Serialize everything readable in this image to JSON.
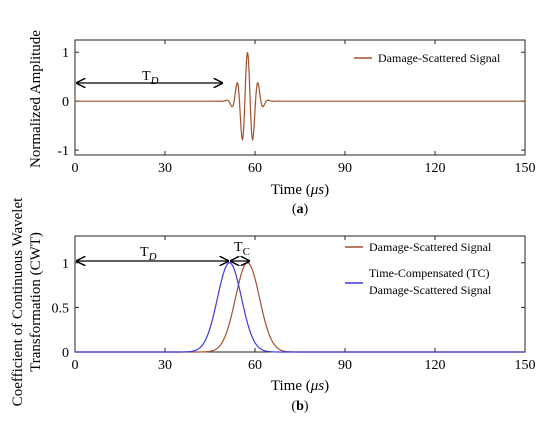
{
  "chart_data": [
    {
      "type": "line",
      "panel_label": "(a)",
      "xlabel": "Time (μs)",
      "ylabel": "Normalized Amplitude",
      "xlim": [
        0,
        150
      ],
      "ylim": [
        -1.1,
        1.25
      ],
      "xticks": [
        "0",
        "30",
        "60",
        "90",
        "120",
        "150"
      ],
      "yticks": [
        "-1",
        "0",
        "1"
      ],
      "legend_position": "top-right",
      "annotation": "T_D",
      "series": [
        {
          "name": "Damage-Scattered Signal",
          "color": "#a0522d",
          "center": 57.5,
          "frequency_mhz": 0.28,
          "sigma": 2.5,
          "amplitude": 1.0
        }
      ]
    },
    {
      "type": "line",
      "panel_label": "(b)",
      "xlabel": "Time (μs)",
      "ylabel": "Coefficient of Continuous Wavelet Transformation (CWT)",
      "xlim": [
        0,
        150
      ],
      "ylim": [
        0,
        1.3
      ],
      "xticks": [
        "0",
        "30",
        "60",
        "90",
        "120",
        "150"
      ],
      "yticks": [
        "0",
        "0.5",
        "1"
      ],
      "legend_position": "top-right",
      "annotations": [
        "T_D",
        "T_C"
      ],
      "series": [
        {
          "name": "Damage-Scattered Signal",
          "color": "#a0522d",
          "peak_time": 57.5,
          "peak_value": 1.0,
          "sigma": 4.0
        },
        {
          "name": "Time-Compensated (TC) Damage-Scattered Signal",
          "color": "#3a3ae0",
          "peak_time": 51.5,
          "peak_value": 1.0,
          "sigma": 4.0
        }
      ]
    }
  ],
  "text": {
    "a_ylabel": "Normalized Amplitude",
    "a_xlabel_pre": "Time (",
    "a_xlabel_mu": "μs",
    "a_xlabel_post": ")",
    "a_panel": "(a)",
    "a_panel_letter": "a",
    "a_legend": "Damage-Scattered Signal",
    "a_td_main": "T",
    "a_td_sub": "D",
    "b_ylabel_1": "Coefficient of Continuous Wavelet",
    "b_ylabel_2": "Transformation (CWT)",
    "b_xlabel_pre": "Time (",
    "b_xlabel_mu": "μs",
    "b_xlabel_post": ")",
    "b_panel_letter": "b",
    "b_legend_1": "Damage-Scattered Signal",
    "b_legend_2a": "Time-Compensated (TC)",
    "b_legend_2b": "Damage-Scattered Signal",
    "b_td_main": "T",
    "b_td_sub": "D",
    "b_tc_main": "T",
    "b_tc_sub": "C"
  }
}
